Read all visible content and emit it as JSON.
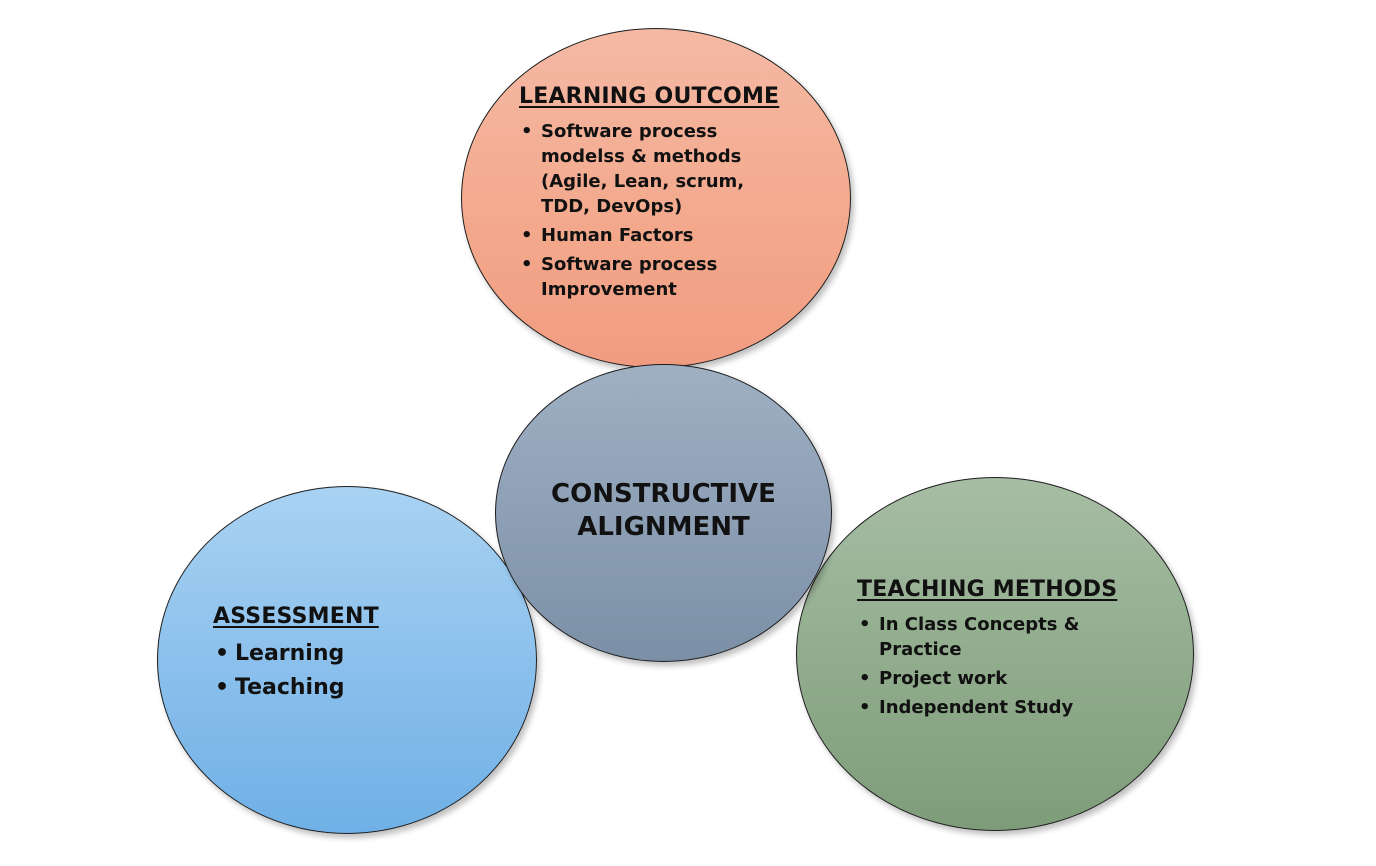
{
  "center": {
    "line1": "CONSTRUCTIVE",
    "line2": "ALIGNMENT"
  },
  "learning_outcome": {
    "heading": "LEARNING OUTCOME",
    "items": [
      "Software process modelss & methods (Agile, Lean, scrum, TDD, DevOps)",
      "Human Factors",
      "Software process Improvement"
    ]
  },
  "assessment": {
    "heading": "ASSESSMENT",
    "items": [
      "Learning",
      "Teaching"
    ]
  },
  "teaching_methods": {
    "heading": "TEACHING METHODS",
    "items": [
      "In Class Concepts & Practice",
      "Project work",
      "Independent Study"
    ]
  },
  "colors": {
    "learning_outcome_fill": "#f3a88c",
    "assessment_fill": "#86bdeb",
    "teaching_methods_fill": "#8fab8b",
    "center_fill": "#8b9eb4",
    "outline": "#1e1e1e"
  }
}
